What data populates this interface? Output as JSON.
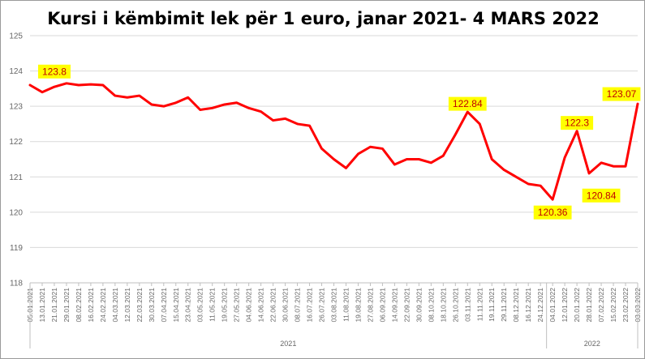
{
  "chart_data": {
    "type": "line",
    "title": "Kursi i këmbimit lek për 1 euro, janar 2021- 4 MARS 2022",
    "xlabel": "",
    "ylabel": "",
    "ylim": [
      118,
      125
    ],
    "yticks": [
      "118",
      "119",
      "120",
      "121",
      "122",
      "123",
      "124",
      "125"
    ],
    "grid": true,
    "legend": "none",
    "line_color": "#ff0000",
    "annotation_bg": "#ffff00",
    "annotation_text_color": "#c00000",
    "xtick_labels": [
      "05.01.2021",
      "13.01.2021",
      "21.01.2021",
      "29.01.2021",
      "08.02.2021",
      "16.02.2021",
      "24.02.2021",
      "04.03.2021",
      "12.03.2021",
      "22.03.2021",
      "30.03.2021",
      "07.04.2021",
      "15.04.2021",
      "23.04.2021",
      "03.05.2021",
      "11.05.2021",
      "19.05.2021",
      "27.05.2021",
      "04.06.2021",
      "14.06.2021",
      "22.06.2021",
      "30.06.2021",
      "08.07.2021",
      "16.07.2021",
      "26.07.2021",
      "03.08.2021",
      "11.08.2021",
      "19.08.2021",
      "27.08.2021",
      "06.09.2021",
      "14.09.2021",
      "22.09.2021",
      "30.09.2021",
      "08.10.2021",
      "18.10.2021",
      "26.10.2021",
      "03.11.2021",
      "11.11.2021",
      "19.11.2021",
      "29.11.2021",
      "08.12.2021",
      "16.12.2021",
      "24.12.2021",
      "04.01.2022",
      "12.01.2022",
      "20.01.2022",
      "28.01.2022",
      "07.02.2022",
      "15.02.2022",
      "23.02.2022",
      "03.03.2022"
    ],
    "year_groups": [
      {
        "label": "2021",
        "start": "05.01.2021",
        "end": "24.12.2021"
      },
      {
        "label": "2022",
        "start": "04.01.2022",
        "end": "03.03.2022"
      }
    ],
    "series": [
      {
        "x": [
          "05.01.2021",
          "13.01.2021",
          "21.01.2021",
          "29.01.2021",
          "08.02.2021",
          "16.02.2021",
          "24.02.2021",
          "04.03.2021",
          "12.03.2021",
          "22.03.2021",
          "30.03.2021",
          "07.04.2021",
          "15.04.2021",
          "23.04.2021",
          "03.05.2021",
          "11.05.2021",
          "19.05.2021",
          "27.05.2021",
          "04.06.2021",
          "14.06.2021",
          "22.06.2021",
          "30.06.2021",
          "08.07.2021",
          "16.07.2021",
          "26.07.2021",
          "03.08.2021",
          "11.08.2021",
          "19.08.2021",
          "27.08.2021",
          "06.09.2021",
          "14.09.2021",
          "22.09.2021",
          "30.09.2021",
          "08.10.2021",
          "18.10.2021",
          "26.10.2021",
          "03.11.2021",
          "11.11.2021",
          "19.11.2021",
          "29.11.2021",
          "08.12.2021",
          "16.12.2021",
          "24.12.2021",
          "04.01.2022",
          "12.01.2022",
          "20.01.2022",
          "28.01.2022",
          "07.02.2022",
          "15.02.2022",
          "23.02.2022",
          "03.03.2022"
        ],
        "values": [
          123.6,
          123.4,
          123.55,
          123.65,
          123.6,
          123.62,
          123.6,
          123.3,
          123.25,
          123.3,
          123.05,
          123.0,
          123.1,
          123.25,
          122.9,
          122.95,
          123.05,
          123.1,
          122.95,
          122.85,
          122.6,
          122.65,
          122.5,
          122.45,
          121.8,
          121.5,
          121.25,
          121.65,
          121.85,
          121.8,
          121.35,
          121.5,
          121.5,
          121.4,
          121.6,
          122.2,
          122.84,
          122.5,
          121.5,
          121.2,
          121.0,
          120.8,
          120.75,
          120.36,
          121.55,
          122.3,
          121.1,
          121.4,
          121.3,
          121.3,
          123.07
        ]
      }
    ],
    "annotations": [
      {
        "text": "123.8",
        "x": "21.01.2021",
        "y": 123.8
      },
      {
        "text": "122.84",
        "x": "03.11.2021",
        "y": 122.84
      },
      {
        "text": "120.36",
        "x": "04.01.2022",
        "y": 120.36
      },
      {
        "text": "122.3",
        "x": "20.01.2022",
        "y": 122.3
      },
      {
        "text": "120.84",
        "x": "07.02.2022",
        "y": 120.84
      },
      {
        "text": "123.07",
        "x": "03.03.2022",
        "y": 123.07
      }
    ]
  }
}
